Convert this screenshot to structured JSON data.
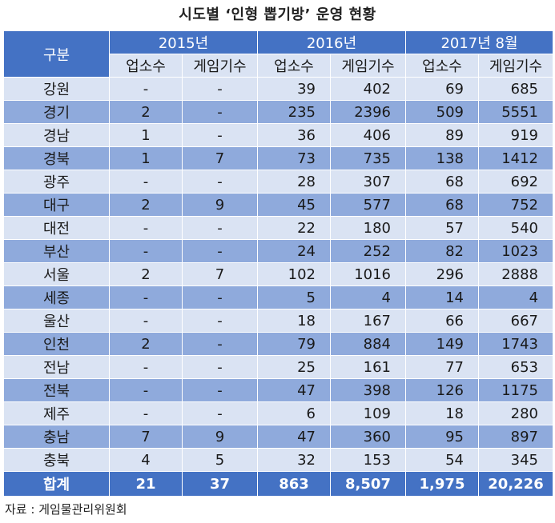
{
  "title": "시도별 ‘인형 뽑기방’ 운영 현황",
  "header": {
    "gubun": "구분",
    "years": [
      "2015년",
      "2016년",
      "2017년 8월"
    ],
    "sub": [
      "업소수",
      "게임기수",
      "업소수",
      "게임기수",
      "업소수",
      "게임기수"
    ]
  },
  "rows": [
    {
      "region": "강원",
      "v": [
        "-",
        "-",
        "39",
        "402",
        "69",
        "685"
      ]
    },
    {
      "region": "경기",
      "v": [
        "2",
        "-",
        "235",
        "2396",
        "509",
        "5551"
      ]
    },
    {
      "region": "경남",
      "v": [
        "1",
        "-",
        "36",
        "406",
        "89",
        "919"
      ]
    },
    {
      "region": "경북",
      "v": [
        "1",
        "7",
        "73",
        "735",
        "138",
        "1412"
      ]
    },
    {
      "region": "광주",
      "v": [
        "-",
        "-",
        "28",
        "307",
        "68",
        "692"
      ]
    },
    {
      "region": "대구",
      "v": [
        "2",
        "9",
        "45",
        "577",
        "68",
        "752"
      ]
    },
    {
      "region": "대전",
      "v": [
        "-",
        "-",
        "22",
        "180",
        "57",
        "540"
      ]
    },
    {
      "region": "부산",
      "v": [
        "-",
        "-",
        "24",
        "252",
        "82",
        "1023"
      ]
    },
    {
      "region": "서울",
      "v": [
        "2",
        "7",
        "102",
        "1016",
        "296",
        "2888"
      ]
    },
    {
      "region": "세종",
      "v": [
        "-",
        "-",
        "5",
        "4",
        "14",
        "4"
      ]
    },
    {
      "region": "울산",
      "v": [
        "-",
        "-",
        "18",
        "167",
        "66",
        "667"
      ]
    },
    {
      "region": "인천",
      "v": [
        "2",
        "-",
        "79",
        "884",
        "149",
        "1743"
      ]
    },
    {
      "region": "전남",
      "v": [
        "-",
        "-",
        "25",
        "161",
        "77",
        "653"
      ]
    },
    {
      "region": "전북",
      "v": [
        "-",
        "-",
        "47",
        "398",
        "126",
        "1175"
      ]
    },
    {
      "region": "제주",
      "v": [
        "-",
        "-",
        "6",
        "109",
        "18",
        "280"
      ]
    },
    {
      "region": "충남",
      "v": [
        "7",
        "9",
        "47",
        "360",
        "95",
        "897"
      ]
    },
    {
      "region": "충북",
      "v": [
        "4",
        "5",
        "32",
        "153",
        "54",
        "345"
      ]
    }
  ],
  "total": {
    "label": "합계",
    "v": [
      "21",
      "37",
      "863",
      "8,507",
      "1,975",
      "20,226"
    ]
  },
  "source": "자료 : 게임물관리위원회"
}
